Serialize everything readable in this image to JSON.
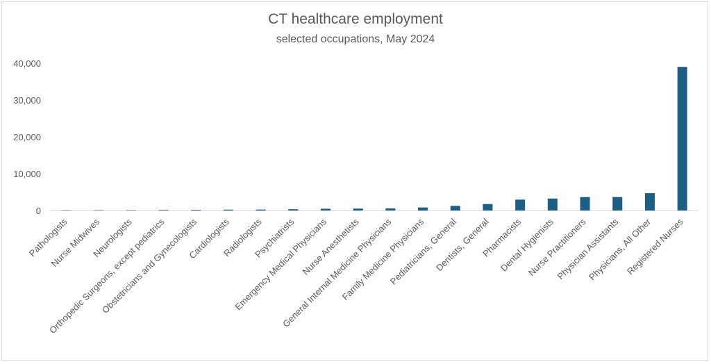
{
  "chart_data": {
    "type": "bar",
    "title": "CT healthcare employment",
    "subtitle": "selected occupations, May 2024",
    "xlabel": "",
    "ylabel": "",
    "ylim": [
      0,
      40000
    ],
    "yticks": [
      0,
      10000,
      20000,
      30000,
      40000
    ],
    "ytick_labels": [
      "0",
      "10,000",
      "20,000",
      "30,000",
      "40,000"
    ],
    "grid": false,
    "legend": "none",
    "bar_color": "#1b5f84",
    "categories": [
      "Pathologists",
      "Nurse Midwives",
      "Neurologists",
      "Orthopedic Surgeons, except pediatrics",
      "Obstetricians and Gynecologists",
      "Cardiologists",
      "Radiologists",
      "Psychiatrists",
      "Emergency Medical Physicians",
      "Nurse Anesthetists",
      "General Internal Medicine Physicians",
      "Family Medicine Physicians",
      "Pediatricians, General",
      "Dentists, General",
      "Pharmacists",
      "Dental Hygienists",
      "Nurse Practitioners",
      "Physician Assistants",
      "Physicians, All Other",
      "Registered Nurses"
    ],
    "values": [
      40,
      60,
      80,
      150,
      170,
      230,
      260,
      350,
      480,
      520,
      560,
      820,
      1250,
      1750,
      2950,
      3250,
      3650,
      3650,
      4700,
      39000
    ]
  }
}
